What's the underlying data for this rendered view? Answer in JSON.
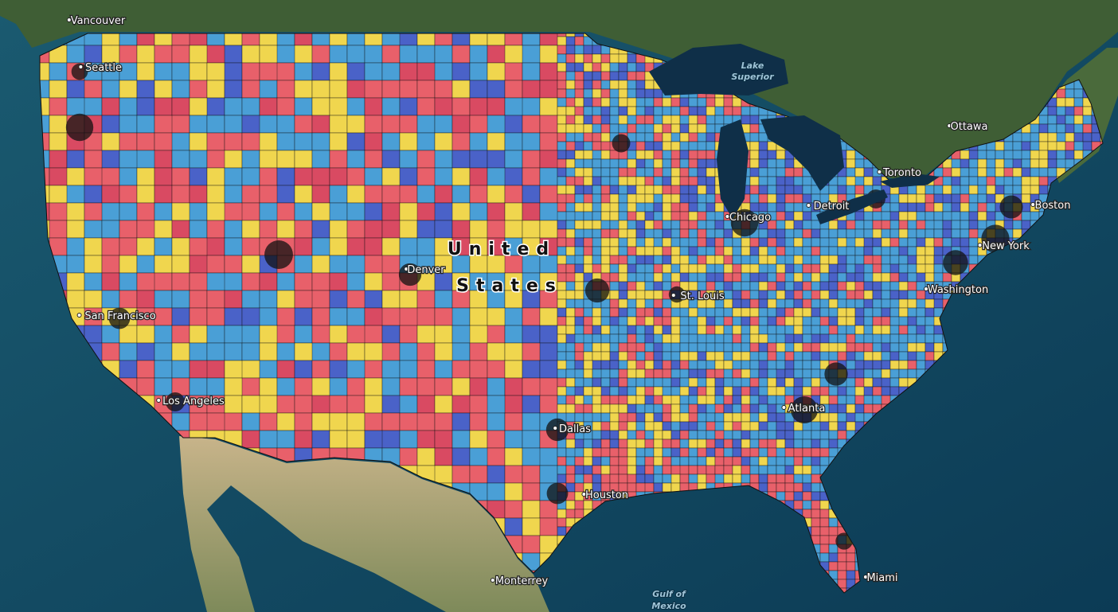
{
  "places": [
    "Vancouver",
    "Seattle",
    "Ottawa",
    "Toronto",
    "Chicago",
    "Detroit",
    "Boston",
    "New York",
    "Washington",
    "Denver",
    "St. Louis",
    "San Francisco",
    "Los Angeles",
    "Dallas",
    "Atlanta",
    "Houston",
    "Monterrey",
    "Miami"
  ],
  "country": [
    "United",
    "States"
  ],
  "lake": [
    "Lake",
    "Superior"
  ],
  "gulf": [
    "Gulf of",
    "Mexico"
  ]
}
